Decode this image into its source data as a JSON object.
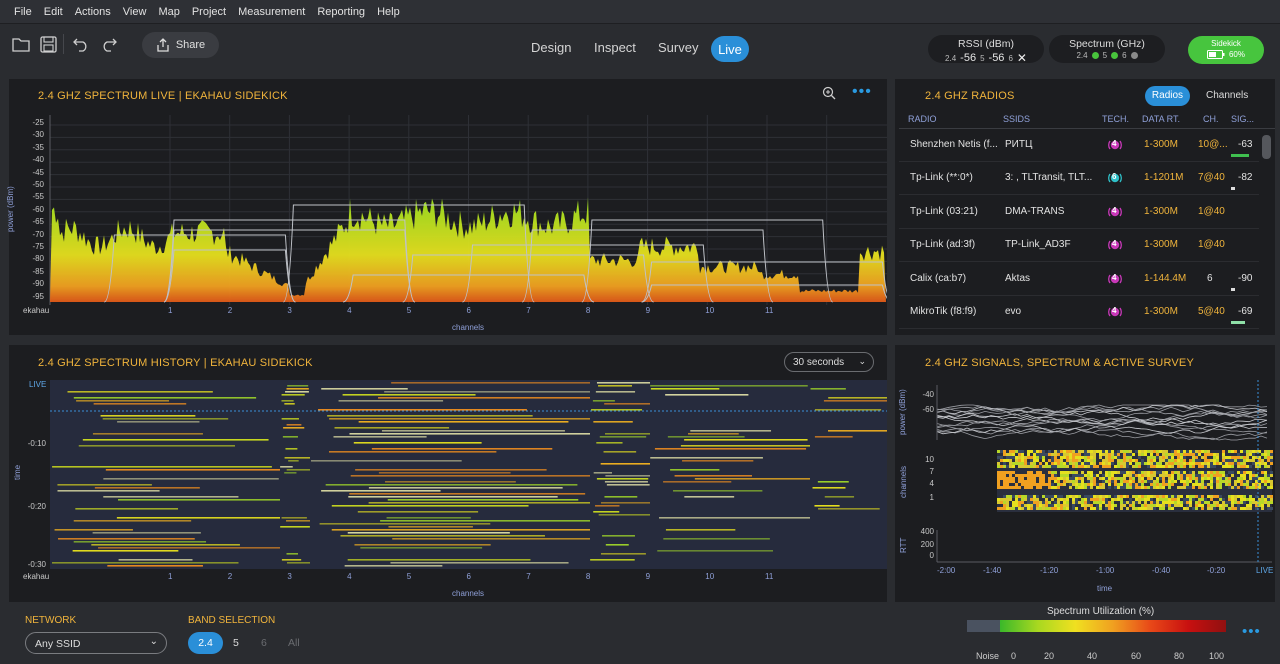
{
  "menu": [
    "File",
    "Edit",
    "Actions",
    "View",
    "Map",
    "Project",
    "Measurement",
    "Reporting",
    "Help"
  ],
  "toolbar": {
    "share": "Share"
  },
  "modes": {
    "design": "Design",
    "inspect": "Inspect",
    "survey": "Survey",
    "live": "Live"
  },
  "rssi": {
    "title": "RSSI (dBm)",
    "b24": "2.4",
    "v24": "-56",
    "b5": "5",
    "v5": "-56",
    "b6": "6"
  },
  "spectrum": {
    "title": "Spectrum (GHz)",
    "b24": "2.4",
    "b5": "5",
    "b6": "6",
    "colors": {
      "b24": "#48c43c",
      "b5": "#48c43c",
      "b6": "#8a8a8a"
    }
  },
  "sidekick": {
    "label": "Sidekick",
    "battery": "60%"
  },
  "live_panel": {
    "title": "2.4 GHZ SPECTRUM LIVE | EKAHAU SIDEKICK",
    "ylabel": "power (dBm)",
    "xlabel": "channels",
    "origin": "ekahau",
    "yticks": [
      "-25",
      "-30",
      "-35",
      "-40",
      "-45",
      "-50",
      "-55",
      "-60",
      "-65",
      "-70",
      "-75",
      "-80",
      "-85",
      "-90",
      "-95"
    ],
    "xticks": [
      "1",
      "2",
      "3",
      "4",
      "5",
      "6",
      "7",
      "8",
      "9",
      "10",
      "11"
    ]
  },
  "history_panel": {
    "title": "2.4 GHZ SPECTRUM HISTORY | EKAHAU SIDEKICK",
    "dropdown": "30 seconds",
    "ylabel": "time",
    "live": "LIVE",
    "yticks": [
      "-0:10",
      "-0:20",
      "-0:30"
    ],
    "xlabel": "channels",
    "origin": "ekahau",
    "xticks": [
      "1",
      "2",
      "3",
      "4",
      "5",
      "6",
      "7",
      "8",
      "9",
      "10",
      "11"
    ]
  },
  "radios_panel": {
    "title": "2.4 GHZ  RADIOS",
    "tab_radios": "Radios",
    "tab_channels": "Channels",
    "headers": {
      "radio": "RADIO",
      "ssids": "SSIDS",
      "tech": "TECH.",
      "rate": "DATA RT.",
      "ch": "CH.",
      "sig": "SIG..."
    },
    "rows": [
      {
        "radio": "Shenzhen Netis (f...",
        "ssid": "РИТЦ",
        "tech": "4",
        "rate": "1-300M",
        "ch": "10@...",
        "sig": "-63",
        "sigcolor": "#3fbf4f"
      },
      {
        "radio": "Tp-Link (**:0*)",
        "ssid": "3: , TLTransit, TLT...",
        "tech": "6",
        "rate": "1-1201M",
        "ch": "7@40",
        "sig": "-82",
        "sigcolor": "#dddddd"
      },
      {
        "radio": "Tp-Link (03:21)",
        "ssid": "DMA-TRANS",
        "tech": "4",
        "rate": "1-300M",
        "ch": "1@40",
        "sig": "",
        "sigcolor": ""
      },
      {
        "radio": "Tp-Link (ad:3f)",
        "ssid": "TP-Link_AD3F",
        "tech": "4",
        "rate": "1-300M",
        "ch": "1@40",
        "sig": "",
        "sigcolor": ""
      },
      {
        "radio": "Calix (ca:b7)",
        "ssid": "Aktas",
        "tech": "4",
        "rate": "1-144.4M",
        "ch": "6",
        "sig": "-90",
        "sigcolor": "#dddddd"
      },
      {
        "radio": "MikroTik (f8:f9)",
        "ssid": "evo",
        "tech": "4",
        "rate": "1-300M",
        "ch": "5@40",
        "sig": "-69",
        "sigcolor": "#8fe0a8"
      }
    ]
  },
  "signals_panel": {
    "title": "2.4 GHZ SIGNALS, SPECTRUM & ACTIVE SURVEY",
    "power_label": "power (dBm)",
    "power_ticks": [
      "-40",
      "-60"
    ],
    "channels_label": "channels",
    "channel_ticks": [
      "10",
      "7",
      "4",
      "1"
    ],
    "rtt_label": "RTT",
    "rtt_ticks": [
      "400",
      "200",
      "0"
    ],
    "time_ticks": [
      "-2:00",
      "-1:40",
      "-1:20",
      "-1:00",
      "-0:40",
      "-0:20",
      "LIVE"
    ],
    "xlabel": "time"
  },
  "bottom": {
    "network_label": "NETWORK",
    "network_value": "Any SSID",
    "band_label": "BAND SELECTION",
    "bands": [
      "2.4",
      "5",
      "6",
      "All"
    ],
    "util_title": "Spectrum Utilization (%)",
    "legend": [
      "Noise",
      "0",
      "20",
      "40",
      "60",
      "80",
      "100"
    ]
  }
}
